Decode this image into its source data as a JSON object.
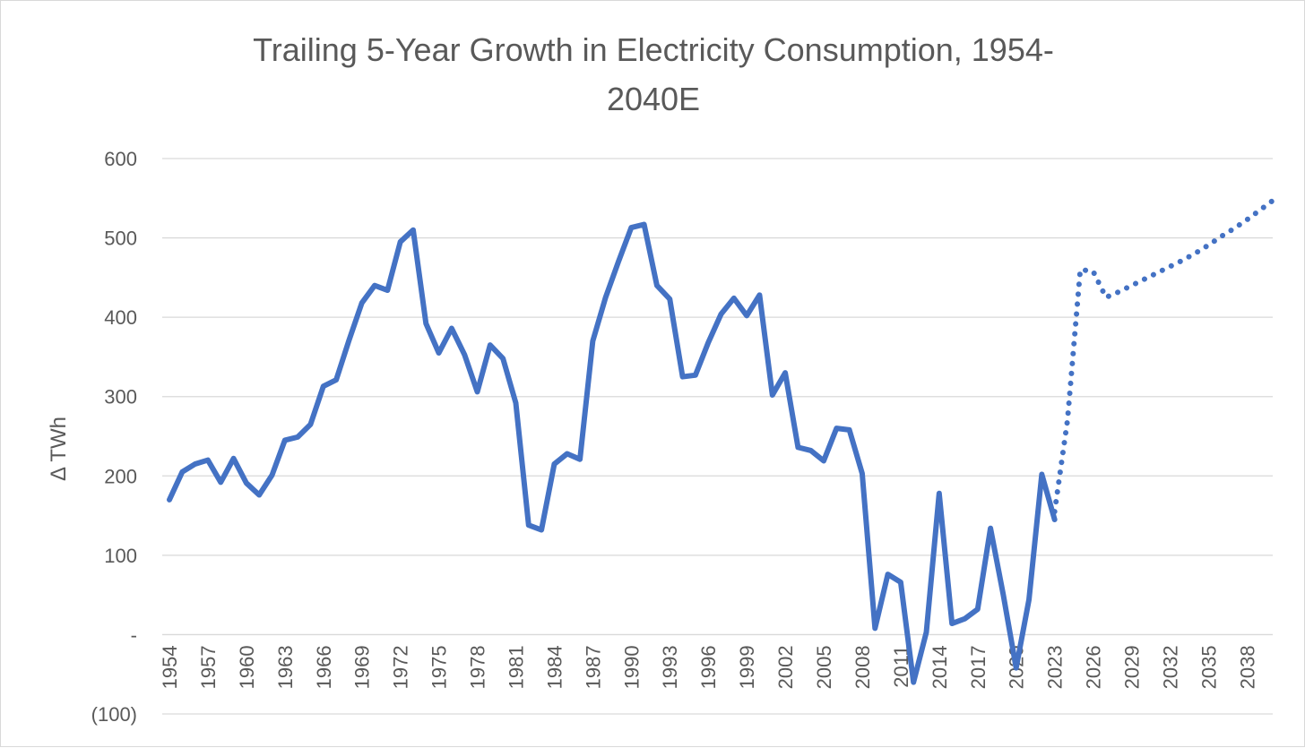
{
  "chart_data": {
    "type": "line",
    "title_lines": [
      "Trailing 5-Year Growth in Electricity Consumption, 1954-",
      "2040E"
    ],
    "xlabel": "",
    "ylabel": "Δ TWh",
    "ylim": [
      -100,
      600
    ],
    "y_ticks": [
      -100,
      0,
      100,
      200,
      300,
      400,
      500,
      600
    ],
    "y_tick_labels": [
      "(100)",
      "-",
      "100",
      "200",
      "300",
      "400",
      "500",
      "600"
    ],
    "x_ticks": [
      1954,
      1957,
      1960,
      1963,
      1966,
      1969,
      1972,
      1975,
      1978,
      1981,
      1984,
      1987,
      1990,
      1993,
      1996,
      1999,
      2002,
      2005,
      2008,
      2011,
      2014,
      2017,
      2020,
      2023,
      2026,
      2029,
      2032,
      2035,
      2038
    ],
    "grid": true,
    "legend": "none",
    "color": "#4472C4",
    "series": [
      {
        "style": "solid",
        "x": [
          1954,
          1955,
          1956,
          1957,
          1958,
          1959,
          1960,
          1961,
          1962,
          1963,
          1964,
          1965,
          1966,
          1967,
          1968,
          1969,
          1970,
          1971,
          1972,
          1973,
          1974,
          1975,
          1976,
          1977,
          1978,
          1979,
          1980,
          1981,
          1982,
          1983,
          1984,
          1985,
          1986,
          1987,
          1988,
          1989,
          1990,
          1991,
          1992,
          1993,
          1994,
          1995,
          1996,
          1997,
          1998,
          1999,
          2000,
          2001,
          2002,
          2003,
          2004,
          2005,
          2006,
          2007,
          2008,
          2009,
          2010,
          2011,
          2012,
          2013,
          2014,
          2015,
          2016,
          2017,
          2018,
          2019,
          2020,
          2021,
          2022,
          2023
        ],
        "y": [
          170,
          205,
          215,
          220,
          192,
          222,
          191,
          176,
          201,
          245,
          249,
          265,
          313,
          321,
          371,
          418,
          440,
          434,
          495,
          510,
          392,
          355,
          386,
          353,
          306,
          365,
          348,
          292,
          138,
          132,
          215,
          228,
          221,
          370,
          425,
          470,
          513,
          517,
          440,
          423,
          325,
          327,
          368,
          404,
          424,
          402,
          428,
          302,
          330,
          236,
          232,
          219,
          260,
          258,
          203,
          8,
          76,
          66,
          -60,
          3,
          178,
          14,
          20,
          32,
          134,
          50,
          -42,
          44,
          202,
          145
        ]
      },
      {
        "style": "dotted",
        "x": [
          2023,
          2024,
          2025,
          2026,
          2027,
          2028,
          2029,
          2030,
          2031,
          2032,
          2033,
          2034,
          2035,
          2036,
          2037,
          2038,
          2039,
          2040
        ],
        "y": [
          155,
          270,
          460,
          458,
          425,
          432,
          440,
          448,
          456,
          464,
          472,
          481,
          491,
          502,
          512,
          523,
          535,
          547
        ]
      }
    ]
  }
}
